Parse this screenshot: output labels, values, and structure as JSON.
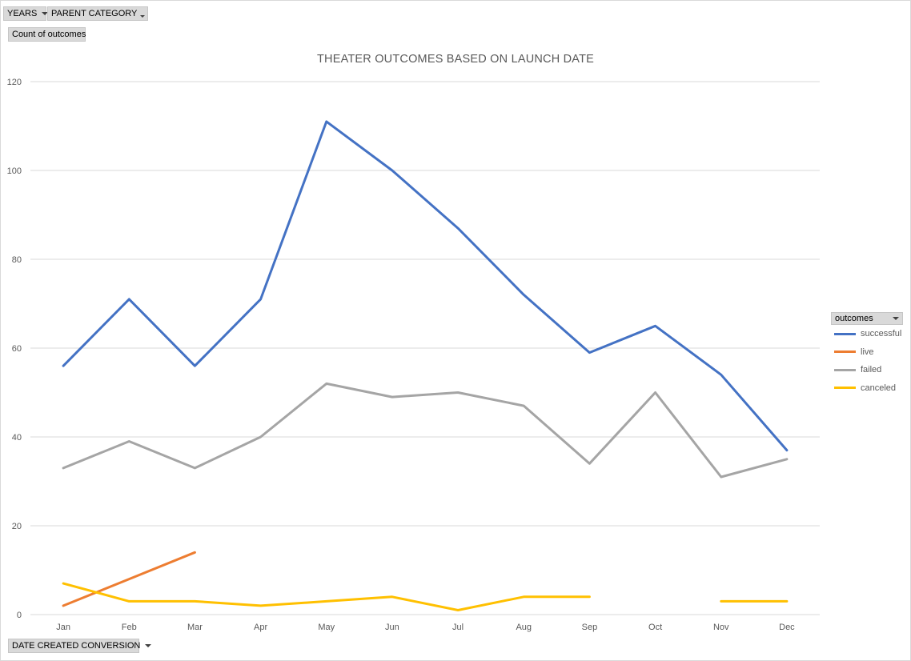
{
  "filters": {
    "years_label": "YEARS",
    "parent_category_label": "PARENT CATEGORY",
    "values_label": "Count of outcomes",
    "axis_field_label": "DATE CREATED CONVERSION"
  },
  "legend": {
    "field_label": "outcomes",
    "items": [
      {
        "label": "successful",
        "color": "#4472c4"
      },
      {
        "label": "live",
        "color": "#ed7d31"
      },
      {
        "label": "failed",
        "color": "#a5a5a5"
      },
      {
        "label": "canceled",
        "color": "#ffc000"
      }
    ]
  },
  "chart_data": {
    "type": "line",
    "title": "THEATER OUTCOMES BASED ON LAUNCH DATE",
    "categories": [
      "Jan",
      "Feb",
      "Mar",
      "Apr",
      "May",
      "Jun",
      "Jul",
      "Aug",
      "Sep",
      "Oct",
      "Nov",
      "Dec"
    ],
    "ylim": [
      0,
      120
    ],
    "yticks": [
      0,
      20,
      40,
      60,
      80,
      100,
      120
    ],
    "grid": true,
    "legend_position": "right",
    "series": [
      {
        "name": "successful",
        "color": "#4472c4",
        "values": [
          56,
          71,
          56,
          71,
          111,
          100,
          87,
          72,
          59,
          65,
          54,
          37
        ]
      },
      {
        "name": "live",
        "color": "#ed7d31",
        "values": [
          2,
          8,
          14,
          null,
          null,
          null,
          null,
          null,
          null,
          null,
          null,
          null
        ]
      },
      {
        "name": "failed",
        "color": "#a5a5a5",
        "values": [
          33,
          39,
          33,
          40,
          52,
          49,
          50,
          47,
          34,
          50,
          31,
          35
        ]
      },
      {
        "name": "canceled",
        "color": "#ffc000",
        "values": [
          7,
          3,
          3,
          2,
          3,
          4,
          1,
          4,
          4,
          null,
          3,
          3
        ]
      }
    ]
  }
}
